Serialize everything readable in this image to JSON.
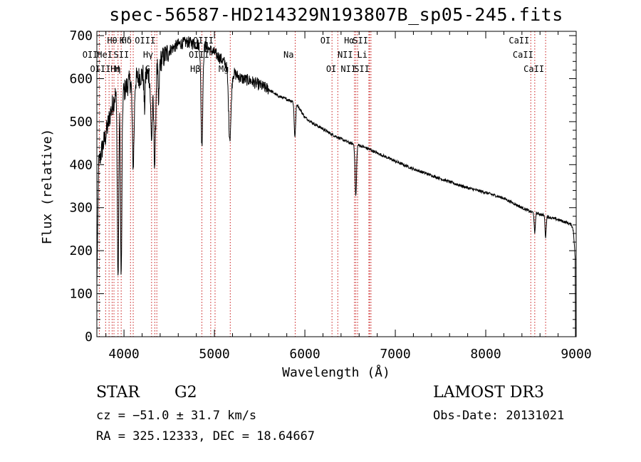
{
  "page": {
    "title": "spec-56587-HD214329N193807B_sp05-245.fits"
  },
  "info": {
    "object_class": "STAR",
    "subclass": "G2",
    "survey": "LAMOST DR3",
    "cz": "cz = −51.0 ± 31.7 km/s",
    "obs_date": "Obs-Date: 20131021",
    "radec": "RA = 325.12333, DEC =  18.64667"
  },
  "chart_data": {
    "type": "line",
    "title": "spec-56587-HD214329N193807B_sp05-245.fits",
    "xlabel": "Wavelength (Å)",
    "ylabel": "Flux (relative)",
    "xlim": [
      3700,
      9000
    ],
    "ylim": [
      0,
      710
    ],
    "xticks": [
      4000,
      5000,
      6000,
      7000,
      8000,
      9000
    ],
    "yticks": [
      0,
      100,
      200,
      300,
      400,
      500,
      600,
      700
    ],
    "continuum": [
      [
        3700,
        380
      ],
      [
        3750,
        430
      ],
      [
        3800,
        470
      ],
      [
        3850,
        520
      ],
      [
        3900,
        560
      ],
      [
        3950,
        580
      ],
      [
        4000,
        570
      ],
      [
        4050,
        590
      ],
      [
        4100,
        600
      ],
      [
        4150,
        600
      ],
      [
        4200,
        610
      ],
      [
        4300,
        610
      ],
      [
        4400,
        640
      ],
      [
        4500,
        665
      ],
      [
        4600,
        680
      ],
      [
        4700,
        685
      ],
      [
        4800,
        680
      ],
      [
        4900,
        675
      ],
      [
        5000,
        660
      ],
      [
        5100,
        640
      ],
      [
        5200,
        615
      ],
      [
        5300,
        600
      ],
      [
        5400,
        595
      ],
      [
        5500,
        585
      ],
      [
        5600,
        575
      ],
      [
        5700,
        560
      ],
      [
        5800,
        552
      ],
      [
        5900,
        545
      ],
      [
        6000,
        510
      ],
      [
        6100,
        495
      ],
      [
        6200,
        483
      ],
      [
        6300,
        470
      ],
      [
        6400,
        460
      ],
      [
        6500,
        450
      ],
      [
        6600,
        445
      ],
      [
        6700,
        437
      ],
      [
        6800,
        427
      ],
      [
        7000,
        408
      ],
      [
        7200,
        390
      ],
      [
        7400,
        375
      ],
      [
        7600,
        360
      ],
      [
        7800,
        346
      ],
      [
        8000,
        335
      ],
      [
        8200,
        322
      ],
      [
        8400,
        300
      ],
      [
        8500,
        290
      ],
      [
        8600,
        285
      ],
      [
        8700,
        278
      ],
      [
        8800,
        272
      ],
      [
        8900,
        265
      ],
      [
        8950,
        260
      ],
      [
        8970,
        245
      ],
      [
        8990,
        180
      ],
      [
        9000,
        0
      ]
    ],
    "absorption": [
      [
        3934,
        440,
        8
      ],
      [
        3969,
        440,
        8
      ],
      [
        4102,
        200,
        10
      ],
      [
        4227,
        80,
        6
      ],
      [
        4305,
        150,
        10
      ],
      [
        4340,
        220,
        10
      ],
      [
        4383,
        100,
        6
      ],
      [
        4861,
        230,
        10
      ],
      [
        5170,
        160,
        14
      ],
      [
        5890,
        80,
        8
      ],
      [
        6563,
        120,
        8
      ],
      [
        8542,
        50,
        6
      ],
      [
        8662,
        50,
        6
      ]
    ],
    "lines": [
      {
        "label": "Hθ",
        "wl": 3797,
        "row": 0,
        "side": "right"
      },
      {
        "label": "K",
        "wl": 3934,
        "row": 0,
        "side": "right"
      },
      {
        "label": "Hδ",
        "wl": 4102,
        "row": 0,
        "side": "left"
      },
      {
        "label": "OII",
        "wl": 3727,
        "row": 1,
        "side": "left"
      },
      {
        "label": "HeI",
        "wl": 3889,
        "row": 1,
        "side": "left"
      },
      {
        "label": "SII",
        "wl": 4072,
        "row": 1,
        "side": "left"
      },
      {
        "label": "OIII",
        "wl": 3869,
        "row": 2,
        "side": "left"
      },
      {
        "label": "Hη",
        "wl": 3835,
        "row": 2,
        "side": "right"
      },
      {
        "label": "H",
        "wl": 3969,
        "row": 2,
        "side": "left"
      },
      {
        "label": "OIII",
        "wl": 4363,
        "row": 0,
        "side": "left"
      },
      {
        "label": "Hγ",
        "wl": 4340,
        "row": 1,
        "side": "left"
      },
      {
        "label": "G",
        "wl": 4305,
        "row": 2,
        "side": "left"
      },
      {
        "label": "OIII",
        "wl": 5007,
        "row": 0,
        "side": "left"
      },
      {
        "label": "OIII",
        "wl": 4959,
        "row": 1,
        "side": "left"
      },
      {
        "label": "Hβ",
        "wl": 4861,
        "row": 2,
        "side": "left"
      },
      {
        "label": "Mg",
        "wl": 5175,
        "row": 2,
        "side": "left"
      },
      {
        "label": "Na",
        "wl": 5893,
        "row": 1,
        "side": "left"
      },
      {
        "label": "OI",
        "wl": 6300,
        "row": 0,
        "side": "left"
      },
      {
        "label": "OI",
        "wl": 6364,
        "row": 2,
        "side": "left"
      },
      {
        "label": "Hα",
        "wl": 6563,
        "row": 0,
        "side": "left"
      },
      {
        "label": "SII",
        "wl": 6716,
        "row": 0,
        "side": "left"
      },
      {
        "label": "NII",
        "wl": 6548,
        "row": 1,
        "side": "left"
      },
      {
        "label": "Li",
        "wl": 6708,
        "row": 1,
        "side": "left"
      },
      {
        "label": "NII",
        "wl": 6583,
        "row": 2,
        "side": "left"
      },
      {
        "label": "SII",
        "wl": 6731,
        "row": 2,
        "side": "left"
      },
      {
        "label": "CaII",
        "wl": 8498,
        "row": 0,
        "side": "left"
      },
      {
        "label": "CaII",
        "wl": 8542,
        "row": 1,
        "side": "left"
      },
      {
        "label": "CaII",
        "wl": 8662,
        "row": 2,
        "side": "left"
      }
    ]
  }
}
